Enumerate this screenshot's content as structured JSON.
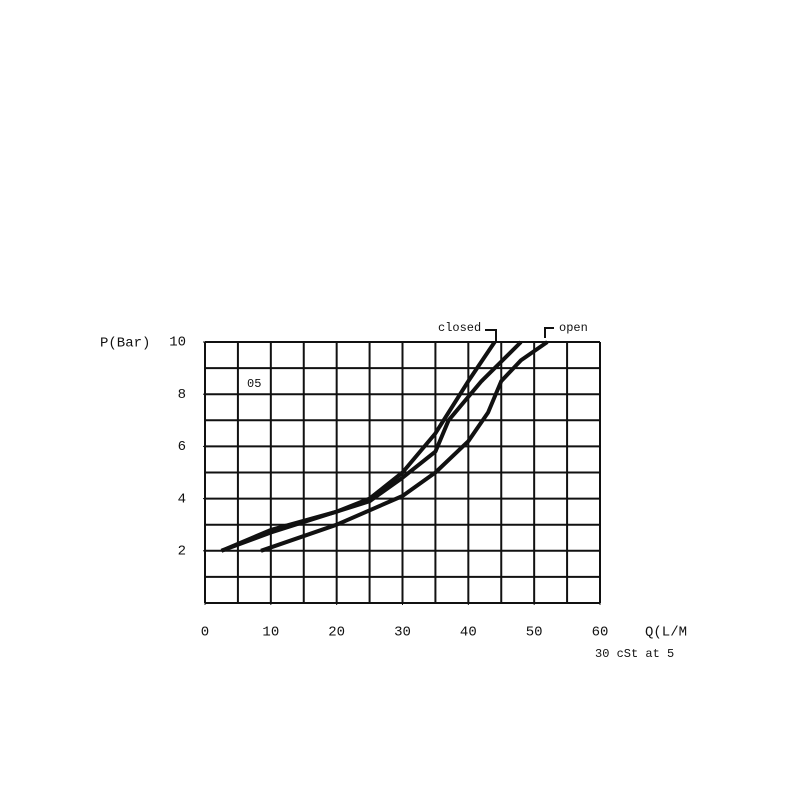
{
  "chart_data": {
    "type": "line",
    "x_label": "Q(L/M",
    "y_label": "P(Bar)",
    "subtitle": "30 cSt at 5",
    "annotations": [
      "closed",
      "open",
      "05"
    ],
    "xlim": [
      0,
      60
    ],
    "xticks": [
      0,
      10,
      20,
      30,
      40,
      50,
      60
    ],
    "ylim": [
      0,
      10
    ],
    "yticks": [
      2,
      4,
      6,
      8,
      10
    ],
    "grid": true,
    "series": [
      {
        "color": "#111111",
        "x": [
          2.5,
          10,
          20,
          25,
          30,
          35,
          40,
          44
        ],
        "values": [
          2,
          2.7,
          3.5,
          4,
          5,
          6.5,
          8.5,
          10
        ]
      },
      {
        "color": "#111111",
        "x": [
          2.5,
          10,
          20,
          25,
          30,
          35,
          37,
          42,
          48
        ],
        "values": [
          2,
          2.8,
          3.5,
          3.9,
          4.8,
          5.8,
          7,
          8.5,
          10
        ]
      },
      {
        "color": "#111111",
        "x": [
          8.5,
          20,
          30,
          35,
          40,
          43,
          45,
          48,
          52
        ],
        "values": [
          2,
          3,
          4.1,
          5,
          6.2,
          7.3,
          8.5,
          9.3,
          10
        ]
      }
    ]
  }
}
